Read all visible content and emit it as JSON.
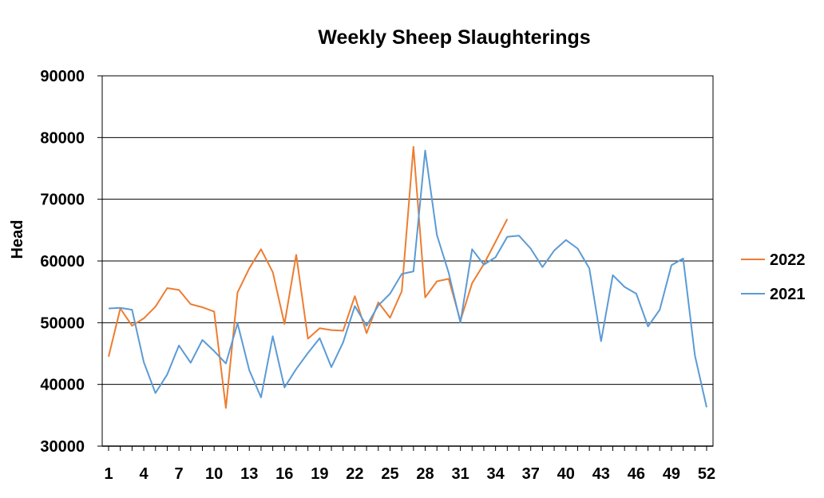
{
  "chart_data": {
    "type": "line",
    "title": "Weekly Sheep Slaughterings",
    "xlabel": "",
    "ylabel": "Head",
    "ylim": [
      30000,
      90000
    ],
    "yticks": [
      30000,
      40000,
      50000,
      60000,
      70000,
      80000,
      90000
    ],
    "xlim": [
      1,
      52
    ],
    "xticks": [
      1,
      4,
      7,
      10,
      13,
      16,
      19,
      22,
      25,
      28,
      31,
      34,
      37,
      40,
      43,
      46,
      49,
      52
    ],
    "grid": "horizontal",
    "legend_position": "right",
    "series": [
      {
        "name": "2022",
        "color": "#ED7D31",
        "x": [
          1,
          2,
          3,
          4,
          5,
          6,
          7,
          8,
          9,
          10,
          11,
          12,
          13,
          14,
          15,
          16,
          17,
          18,
          19,
          20,
          21,
          22,
          23,
          24,
          25,
          26,
          27,
          28,
          29,
          30,
          31,
          32,
          33,
          34,
          35
        ],
        "values": [
          44500,
          52300,
          49500,
          50700,
          52600,
          55600,
          55300,
          53000,
          52500,
          51800,
          36200,
          54900,
          58800,
          61900,
          58200,
          49800,
          61000,
          47400,
          49100,
          48800,
          48700,
          54300,
          48300,
          53300,
          50800,
          55100,
          78500,
          54100,
          56700,
          57100,
          50300,
          56400,
          59500,
          63100,
          66800
        ]
      },
      {
        "name": "2021",
        "color": "#5B9BD5",
        "x": [
          1,
          2,
          3,
          4,
          5,
          6,
          7,
          8,
          9,
          10,
          11,
          12,
          13,
          14,
          15,
          16,
          17,
          18,
          19,
          20,
          21,
          22,
          23,
          24,
          25,
          26,
          27,
          28,
          29,
          30,
          31,
          32,
          33,
          34,
          35,
          36,
          37,
          38,
          39,
          40,
          41,
          42,
          43,
          44,
          45,
          46,
          47,
          48,
          49,
          50,
          51,
          52
        ],
        "values": [
          52300,
          52400,
          52100,
          43600,
          38600,
          41600,
          46300,
          43500,
          47200,
          45400,
          43400,
          49900,
          42300,
          37900,
          47800,
          39500,
          42500,
          45100,
          47500,
          42800,
          46800,
          52700,
          49500,
          52800,
          54700,
          57900,
          58300,
          77900,
          64200,
          58100,
          50000,
          61900,
          59400,
          60600,
          63900,
          64100,
          62000,
          59000,
          61700,
          63400,
          62000,
          58800,
          47000,
          57700,
          55800,
          54700,
          49400,
          52100,
          59300,
          60400,
          44700,
          36300
        ]
      }
    ]
  }
}
